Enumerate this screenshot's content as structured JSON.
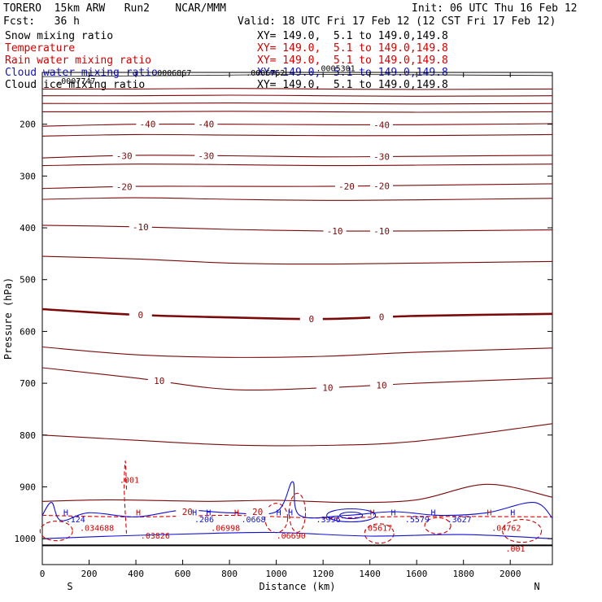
{
  "header": {
    "model": "TORERO  15km ARW   Run2    NCAR/MMM",
    "forecast": "Fcst:   36 h",
    "init": "Init: 06 UTC Thu 16 Feb 12",
    "valid": "Valid: 18 UTC Fri 17 Feb 12 (12 CST Fri 17 Feb 12)"
  },
  "legend": [
    {
      "label": "Snow mixing ratio",
      "xy": "XY= 149.0,  5.1 to 149.0,149.8",
      "color": "#000000"
    },
    {
      "label": "Temperature",
      "xy": "XY= 149.0,  5.1 to 149.0,149.8",
      "color": "#d40000"
    },
    {
      "label": "Rain water mixing ratio",
      "xy": "XY= 149.0,  5.1 to 149.0,149.8",
      "color": "#d40000"
    },
    {
      "label": "Cloud water mixing ratio",
      "xy": "XY= 149.0,  5.1 to 149.0,149.8",
      "color": "#1010d0"
    },
    {
      "label": "Cloud ice mixing ratio",
      "xy": "XY= 149.0,  5.1 to 149.0,149.8",
      "color": "#000000"
    }
  ],
  "chart_data": {
    "type": "line",
    "title": "Vertical cross section",
    "xlabel": "Distance (km)",
    "ylabel": "Pressure (hPa)",
    "xlim": [
      0,
      2180
    ],
    "ylim": [
      1050,
      100
    ],
    "xticks": [
      0,
      200,
      400,
      600,
      800,
      1000,
      1200,
      1400,
      1600,
      1800,
      2000
    ],
    "yticks": [
      200,
      300,
      400,
      500,
      600,
      700,
      800,
      900,
      1000
    ],
    "x_end_labels": {
      "left": "S",
      "right": "N"
    },
    "surface_pressure": 1013,
    "temperature_isotherms": [
      {
        "value": -60,
        "pressure": [
          132,
          132,
          131,
          132,
          133,
          132
        ]
      },
      {
        "value": -55,
        "pressure": [
          145,
          145,
          144,
          145,
          146,
          145
        ]
      },
      {
        "value": -50,
        "pressure": [
          160,
          160,
          159,
          160,
          161,
          160
        ]
      },
      {
        "value": -45,
        "pressure": [
          176,
          176,
          175,
          176,
          177,
          176
        ]
      },
      {
        "value": -40,
        "pressure": [
          204,
          200,
          200,
          201,
          201,
          199
        ]
      },
      {
        "value": -35,
        "pressure": [
          223,
          220,
          221,
          222,
          222,
          220
        ]
      },
      {
        "value": -30,
        "pressure": [
          265,
          260,
          261,
          263,
          262,
          260
        ]
      },
      {
        "value": -25,
        "pressure": [
          280,
          277,
          278,
          280,
          279,
          277
        ]
      },
      {
        "value": -20,
        "pressure": [
          324,
          320,
          320,
          320,
          318,
          315
        ]
      },
      {
        "value": -15,
        "pressure": [
          345,
          342,
          345,
          347,
          346,
          343
        ]
      },
      {
        "value": -10,
        "pressure": [
          395,
          398,
          403,
          406,
          406,
          404
        ]
      },
      {
        "value": -5,
        "pressure": [
          455,
          460,
          468,
          470,
          468,
          465
        ]
      },
      {
        "value": 0,
        "pressure": [
          557,
          568,
          573,
          576,
          570,
          566
        ],
        "bold": true
      },
      {
        "value": 5,
        "pressure": [
          630,
          645,
          650,
          648,
          640,
          632
        ]
      },
      {
        "value": 10,
        "pressure": [
          670,
          690,
          712,
          709,
          700,
          690
        ]
      },
      {
        "value": 15,
        "pressure": [
          800,
          810,
          819,
          820,
          812,
          778
        ]
      }
    ],
    "isotherm_x": [
      0,
      400,
      800,
      1200,
      1600,
      2180
    ],
    "isotherm_labels": [
      {
        "value": -40,
        "x": [
          450,
          700,
          1450
        ]
      },
      {
        "value": -30,
        "x": [
          350,
          700,
          1450
        ]
      },
      {
        "value": -20,
        "x": [
          350,
          1300,
          1450
        ]
      },
      {
        "value": -10,
        "x": [
          420,
          1250,
          1450
        ]
      },
      {
        "value": 0,
        "x": [
          420,
          1150,
          1450
        ]
      },
      {
        "value": 10,
        "x": [
          500,
          1220,
          1450
        ]
      },
      {
        "value": 20,
        "x": [
          620,
          920
        ]
      }
    ],
    "cloud_ice_top_labels": [
      ".0007747",
      ".0006867",
      ".0006752",
      ".0005301"
    ],
    "cloud_water_maxima": [
      ".124",
      ".206",
      ".0668",
      ".3996",
      ".5579",
      ".3627"
    ],
    "rain_water_maxima": [
      ".034688",
      ".03826",
      ".06998",
      ".06690",
      ".05617",
      ".04762",
      ".001"
    ],
    "max_markers": [
      "H",
      "H",
      "H",
      "H",
      "H",
      "H",
      "H",
      "H",
      "H",
      "H",
      "H",
      "H"
    ]
  }
}
